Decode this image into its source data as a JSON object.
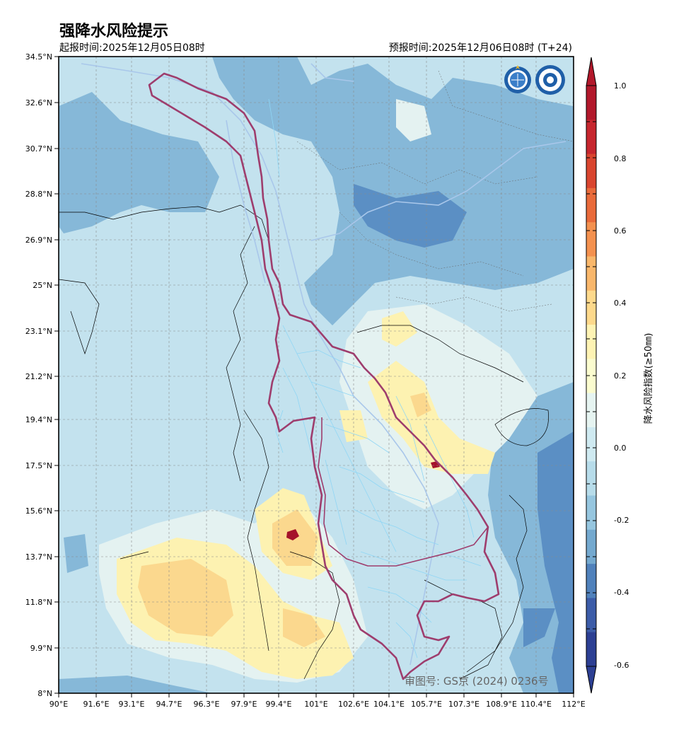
{
  "header": {
    "title": "强降水风险提示",
    "init_time": "起报时间:2025年12月05日08时",
    "valid_time": "预报时间:2025年12月06日08时 (T+24)"
  },
  "map": {
    "lat_labels": [
      "34.5°N",
      "32.6°N",
      "30.7°N",
      "28.8°N",
      "26.9°N",
      "25°N",
      "23.1°N",
      "21.2°N",
      "19.4°N",
      "17.5°N",
      "15.6°N",
      "13.7°N",
      "11.8°N",
      "9.9°N",
      "8°N"
    ],
    "lon_labels": [
      "90°E",
      "91.6°E",
      "93.1°E",
      "94.7°E",
      "96.3°E",
      "97.9°E",
      "99.4°E",
      "101°E",
      "102.6°E",
      "104.1°E",
      "105.7°E",
      "107.3°E",
      "108.9°E",
      "110.4°E",
      "112°E"
    ],
    "lat_range": [
      8,
      34.5
    ],
    "lon_range": [
      90,
      112
    ],
    "approval_number": "审图号: GS京 (2024) 0236号",
    "logos": [
      "wmo-emblem",
      "cma-emblem"
    ]
  },
  "colorbar": {
    "label": "降水风险指数(≥50㎜)",
    "tick_labels": [
      "1.0",
      "0.8",
      "0.6",
      "0.4",
      "0.2",
      "0.0",
      "-0.2",
      "-0.4",
      "-0.6"
    ],
    "colors_top_to_bottom": [
      "#b2182b",
      "#c6262e",
      "#d9452f",
      "#e96a3a",
      "#f4914f",
      "#f9b76b",
      "#fdd98c",
      "#fef3b4",
      "#fbfccf",
      "#e6f4f1",
      "#cfeaf1",
      "#b7dcea",
      "#96c6df",
      "#74a9cf",
      "#5081bb",
      "#3c5ca8",
      "#2c3f93"
    ],
    "colors": {
      "deep_blue": "#5b8fc4",
      "mid_blue": "#86b8d8",
      "light_blue": "#c3e2ee",
      "pale": "#e4f2f1",
      "yellow": "#fdf2b1",
      "orange": "#fbd88e",
      "red": "#a5122a",
      "basin_outline": "#9e3d6d",
      "rivers": "#8fd6f5"
    }
  }
}
